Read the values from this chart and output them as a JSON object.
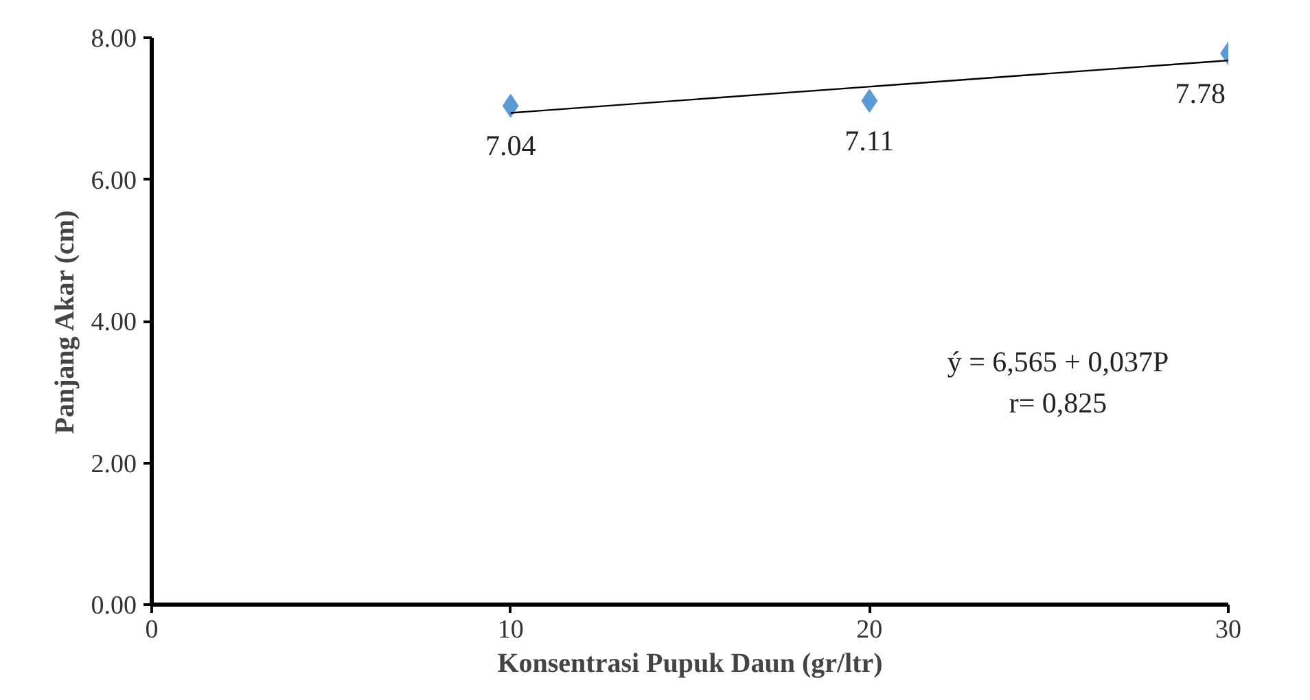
{
  "chart_data": {
    "type": "scatter",
    "xlabel": "Konsentrasi Pupuk Daun (gr/ltr)",
    "ylabel": "Panjang Akar (cm)",
    "xlim": [
      0,
      30
    ],
    "xticks": [
      0,
      10,
      20,
      30
    ],
    "ylim": [
      0,
      8
    ],
    "yticks": [
      {
        "value": 0,
        "label": "0.00"
      },
      {
        "value": 2,
        "label": "2.00"
      },
      {
        "value": 4,
        "label": "4.00"
      },
      {
        "value": 6,
        "label": "6.00"
      },
      {
        "value": 8,
        "label": "8.00"
      }
    ],
    "grid": false,
    "marker": "diamond",
    "series": [
      {
        "type": "scatter",
        "color": "#5b9bd5",
        "x": [
          10,
          20,
          30
        ],
        "values": [
          7.04,
          7.11,
          7.78
        ],
        "value_labels": [
          "7.04",
          "7.11",
          "7.78"
        ]
      },
      {
        "type": "line",
        "color": "#000000",
        "x": [
          10,
          30
        ],
        "values": [
          6.94,
          7.68
        ],
        "marker": "none",
        "line_style": "solid"
      }
    ],
    "annotations": [
      "ý = 6,565 + 0,037P",
      "r= 0,825"
    ]
  }
}
